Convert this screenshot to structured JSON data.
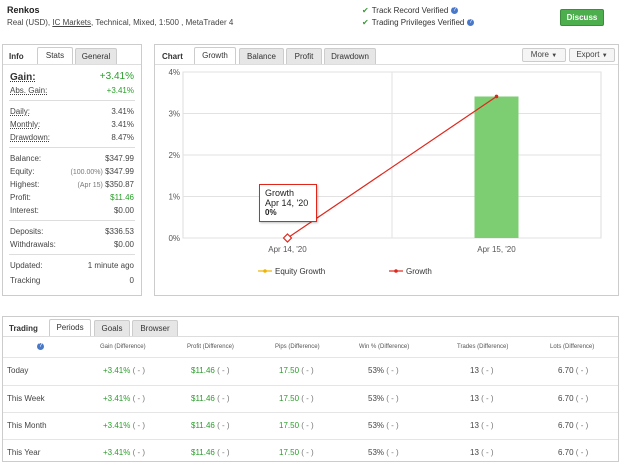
{
  "header": {
    "title": "Renkos",
    "sub_prefix": "Real (USD), ",
    "broker": "IC Markets",
    "sub_suffix": ", Technical, Mixed, 1:500 , MetaTrader 4",
    "verif_track": "Track Record Verified",
    "verif_trading": "Trading Privileges Verified",
    "discuss": "Discuss"
  },
  "info": {
    "title": "Info",
    "tabs": [
      "Stats",
      "General"
    ],
    "gain_label": "Gain:",
    "gain_value": "+3.41%",
    "abs_gain_label": "Abs. Gain:",
    "abs_gain_value": "+3.41%",
    "daily_label": "Daily:",
    "daily_value": "3.41%",
    "monthly_label": "Monthly:",
    "monthly_value": "3.41%",
    "drawdown_label": "Drawdown:",
    "drawdown_value": "8.47%",
    "balance_label": "Balance:",
    "balance_value": "$347.99",
    "equity_label": "Equity:",
    "equity_note": "(100.00%)",
    "equity_value": "$347.99",
    "highest_label": "Highest:",
    "highest_note": "(Apr 15)",
    "highest_value": "$350.87",
    "profit_label": "Profit:",
    "profit_value": "$11.46",
    "interest_label": "Interest:",
    "interest_value": "$0.00",
    "deposits_label": "Deposits:",
    "deposits_value": "$336.53",
    "withdrawals_label": "Withdrawals:",
    "withdrawals_value": "$0.00",
    "updated_label": "Updated:",
    "updated_value": "1 minute ago",
    "tracking_label": "Tracking",
    "tracking_value": "0"
  },
  "chartpanel": {
    "title": "Chart",
    "tabs": [
      "Growth",
      "Balance",
      "Profit",
      "Drawdown"
    ],
    "more": "More",
    "export": "Export",
    "tooltip_title": "Growth",
    "tooltip_date": "Apr 14, '20",
    "tooltip_value": "0%"
  },
  "chart_data": {
    "type": "bar",
    "categories": [
      "Apr 14, '20",
      "Apr 15, '20"
    ],
    "yticks": [
      "4%",
      "3%",
      "2%",
      "1%",
      "0%"
    ],
    "ylim": [
      0,
      4
    ],
    "series": [
      {
        "name": "Equity Growth",
        "type": "bar",
        "values": [
          0,
          3.41
        ],
        "color": "#7dcd73"
      },
      {
        "name": "Growth",
        "type": "line",
        "values": [
          0,
          3.41
        ],
        "color": "#e0261b"
      }
    ],
    "grid": true,
    "legend": "bottom"
  },
  "trading": {
    "title": "Trading",
    "tabs": [
      "Periods",
      "Goals",
      "Browser"
    ],
    "headers": [
      "Gain (Difference)",
      "Profit (Difference)",
      "Pips (Difference)",
      "Win % (Difference)",
      "Trades (Difference)",
      "Lots (Difference)"
    ],
    "rows": [
      {
        "period": "Today",
        "gain": "+3.41%",
        "profit": "$11.46",
        "pips": "17.50",
        "win": "53%",
        "trades": "13",
        "lots": "6.70"
      },
      {
        "period": "This Week",
        "gain": "+3.41%",
        "profit": "$11.46",
        "pips": "17.50",
        "win": "53%",
        "trades": "13",
        "lots": "6.70"
      },
      {
        "period": "This Month",
        "gain": "+3.41%",
        "profit": "$11.46",
        "pips": "17.50",
        "win": "53%",
        "trades": "13",
        "lots": "6.70"
      },
      {
        "period": "This Year",
        "gain": "+3.41%",
        "profit": "$11.46",
        "pips": "17.50",
        "win": "53%",
        "trades": "13",
        "lots": "6.70"
      }
    ],
    "diff": "( - )"
  }
}
